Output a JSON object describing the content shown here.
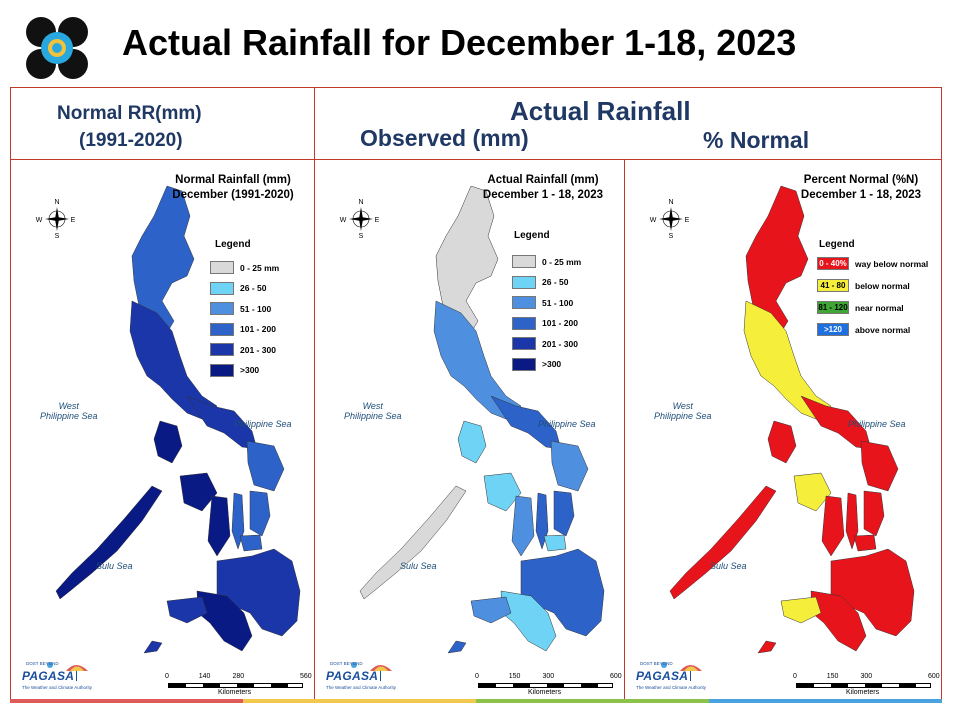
{
  "title": "Actual Rainfall for December 1-18, 2023",
  "headers": {
    "left_line1": "Normal RR(mm)",
    "left_line2": "(1991-2020)",
    "center_top": "Actual Rainfall",
    "observed": "Observed (mm)",
    "percent": "% Normal"
  },
  "panels": [
    {
      "title_line1": "Normal Rainfall (mm)",
      "title_line2": "December (1991-2020)",
      "legend_title": "Legend",
      "legend": [
        {
          "label": "0 - 25 mm",
          "color": "#d9d9d9"
        },
        {
          "label": "26 - 50",
          "color": "#6fd3f5"
        },
        {
          "label": "51 - 100",
          "color": "#4f8fdf"
        },
        {
          "label": "101 - 200",
          "color": "#2d62c9"
        },
        {
          "label": "201 - 300",
          "color": "#1a36a8"
        },
        {
          "label": ">300",
          "color": "#0a1a85"
        }
      ],
      "seas": [
        "West\nPhilippine Sea",
        "Philippine Sea",
        "Sulu Sea"
      ],
      "scale": [
        "0",
        "140",
        "280",
        "560"
      ],
      "scale_unit": "Kilometers"
    },
    {
      "title_line1": "Actual Rainfall (mm)",
      "title_line2": "December 1 - 18, 2023",
      "legend_title": "Legend",
      "legend": [
        {
          "label": "0 - 25 mm",
          "color": "#d9d9d9"
        },
        {
          "label": "26 - 50",
          "color": "#6fd3f5"
        },
        {
          "label": "51 - 100",
          "color": "#4f8fdf"
        },
        {
          "label": "101 - 200",
          "color": "#2d62c9"
        },
        {
          "label": "201 - 300",
          "color": "#1a36a8"
        },
        {
          "label": ">300",
          "color": "#0a1a85"
        }
      ],
      "seas": [
        "West\nPhilippine Sea",
        "Philippine Sea",
        "Sulu Sea"
      ],
      "scale": [
        "0",
        "150",
        "300",
        "600"
      ],
      "scale_unit": "Kilometers"
    },
    {
      "title_line1": "Percent Normal (%N)",
      "title_line2": "December 1 - 18, 2023",
      "legend_title": "Legend",
      "legend": [
        {
          "swatch": "0 - 40%",
          "label": "way below normal",
          "color": "#e8141c",
          "text_color": "#ffffff"
        },
        {
          "swatch": "41 - 80",
          "label": "below normal",
          "color": "#f5ee3a",
          "text_color": "#000000"
        },
        {
          "swatch": "81 - 120",
          "label": "near normal",
          "color": "#3fa535",
          "text_color": "#000000"
        },
        {
          "swatch": ">120",
          "label": "above normal",
          "color": "#1e6fe0",
          "text_color": "#ffffff"
        }
      ],
      "seas": [
        "West\nPhilippine Sea",
        "Philippine Sea",
        "Sulu Sea"
      ],
      "scale": [
        "0",
        "150",
        "300",
        "600"
      ],
      "scale_unit": "Kilometers"
    }
  ],
  "logo": {
    "prefix": "DOST",
    "prefix2": "BEYOND",
    "name": "PAGASA",
    "tagline": "The Weather and Climate Authority"
  },
  "compass_letters": [
    "N",
    "S",
    "E",
    "W"
  ],
  "colors": {
    "frame": "#c0392b",
    "header_text": "#1f3864",
    "stripe": [
      "#e05a5a",
      "#f2c94c",
      "#8bc34a",
      "#4aa3df"
    ]
  }
}
